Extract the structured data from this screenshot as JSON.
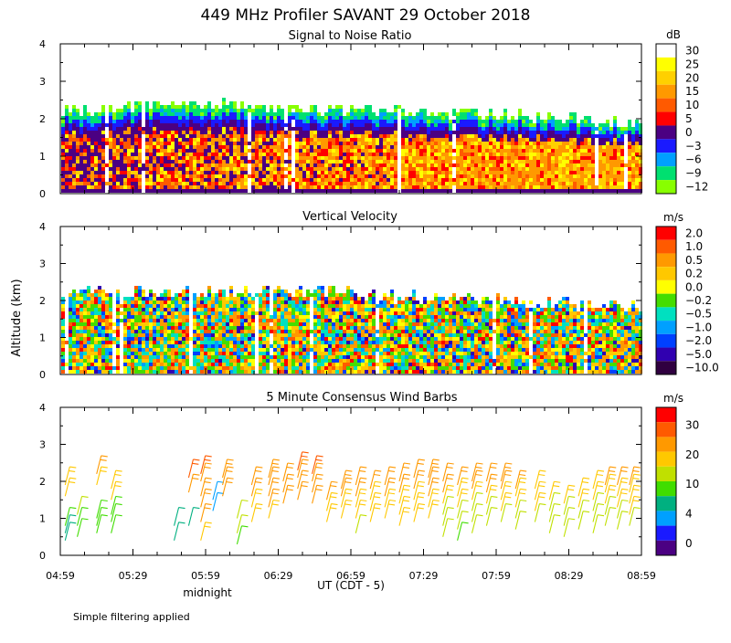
{
  "title": "449 MHz Profiler SAVANT 29 October 2018",
  "y_axis_label": "Altitude (km)",
  "x_axis_label": "UT  (CDT - 5)",
  "midnight_label": "midnight",
  "footer_note": "Simple filtering applied",
  "chart_data": [
    {
      "type": "heatmap",
      "title": "Signal to Noise Ratio",
      "ylabel": "Altitude (km)",
      "xlabel": "UT  (CDT - 5)",
      "x_ticks": [
        "04:59",
        "05:29",
        "05:59",
        "06:29",
        "06:59",
        "07:29",
        "07:59",
        "08:29",
        "08:59"
      ],
      "x_range": [
        "04:59",
        "08:59"
      ],
      "y_ticks": [
        0,
        1,
        2,
        3,
        4
      ],
      "ylim": [
        0,
        4
      ],
      "colorbar": {
        "unit": "dB",
        "labels": [
          "30",
          "25",
          "20",
          "15",
          "10",
          "5",
          "0",
          "−3",
          "−6",
          "−9",
          "−12"
        ],
        "colors": [
          "#ffffff",
          "#ffff00",
          "#ffd000",
          "#ff9900",
          "#ff5a00",
          "#ff0000",
          "#4b0082",
          "#1a1aff",
          "#00a0ff",
          "#00e070",
          "#88ff00"
        ]
      },
      "echo_top_km": [
        2.15,
        2.25,
        2.3,
        2.35,
        2.25,
        2.2,
        2.15,
        2.1,
        2.05,
        2.0,
        1.9,
        1.85
      ]
    },
    {
      "type": "heatmap",
      "title": "Vertical Velocity",
      "ylabel": "Altitude (km)",
      "xlabel": "UT  (CDT - 5)",
      "x_ticks": [
        "04:59",
        "05:29",
        "05:59",
        "06:29",
        "06:59",
        "07:29",
        "07:59",
        "08:29",
        "08:59"
      ],
      "y_ticks": [
        0,
        1,
        2,
        3,
        4
      ],
      "ylim": [
        0,
        4
      ],
      "colorbar": {
        "unit": "m/s",
        "labels": [
          "2.0",
          "1.0",
          "0.5",
          "0.2",
          "0.0",
          "−0.2",
          "−0.5",
          "−1.0",
          "−2.0",
          "−5.0",
          "−10.0"
        ],
        "colors": [
          "#ff0000",
          "#ff5a00",
          "#ff9900",
          "#ffc800",
          "#ffff00",
          "#44dd00",
          "#00e0c0",
          "#00a0ff",
          "#0040ff",
          "#3000b0",
          "#300040"
        ]
      },
      "echo_top_km": [
        2.2,
        2.2,
        2.2,
        2.2,
        2.2,
        2.2,
        2.1,
        2.0,
        2.0,
        1.9,
        1.8,
        1.8
      ]
    },
    {
      "type": "scatter",
      "title": "5 Minute Consensus Wind Barbs",
      "ylabel": "Altitude (km)",
      "xlabel": "UT  (CDT - 5)",
      "x_ticks": [
        "04:59",
        "05:29",
        "05:59",
        "06:29",
        "06:59",
        "07:29",
        "07:59",
        "08:29",
        "08:59"
      ],
      "y_ticks": [
        0,
        1,
        2,
        3,
        4
      ],
      "ylim": [
        0,
        4
      ],
      "colorbar": {
        "unit": "m/s",
        "labels": [
          "30",
          "20",
          "10",
          "4",
          "0"
        ],
        "colors": [
          "#ff0000",
          "#ff5a00",
          "#ff9900",
          "#ffc800",
          "#c0e000",
          "#40dd00",
          "#00b080",
          "#00a0ff",
          "#1a1aff",
          "#4b0082"
        ]
      },
      "barb_columns": [
        {
          "t": "05:01",
          "heights_km": [
            0.4,
            0.6,
            0.8,
            1.6,
            1.9
          ],
          "speed_ms": [
            8,
            8,
            9,
            17,
            17
          ]
        },
        {
          "t": "05:06",
          "heights_km": [
            0.5,
            0.8,
            1.1
          ],
          "speed_ms": [
            10,
            10,
            12
          ]
        },
        {
          "t": "05:14",
          "heights_km": [
            0.6,
            0.8,
            1.0,
            1.9,
            2.2
          ],
          "speed_ms": [
            9,
            10,
            10,
            17,
            18
          ]
        },
        {
          "t": "05:20",
          "heights_km": [
            0.6,
            0.9,
            1.1,
            1.5,
            1.8
          ],
          "speed_ms": [
            10,
            11,
            11,
            16,
            17
          ]
        },
        {
          "t": "05:46",
          "heights_km": [
            0.4,
            0.8
          ],
          "speed_ms": [
            6,
            7
          ]
        },
        {
          "t": "05:52",
          "heights_km": [
            0.8,
            1.7,
            2.1
          ],
          "speed_ms": [
            8,
            20,
            22
          ]
        },
        {
          "t": "05:57",
          "heights_km": [
            0.4,
            0.9,
            1.3,
            1.6,
            2.0,
            2.2
          ],
          "speed_ms": [
            17,
            18,
            19,
            20,
            21,
            22
          ]
        },
        {
          "t": "06:02",
          "heights_km": [
            1.2,
            1.5
          ],
          "speed_ms": [
            5,
            5
          ]
        },
        {
          "t": "06:06",
          "heights_km": [
            1.6,
            1.9,
            2.1
          ],
          "speed_ms": [
            19,
            20,
            21
          ]
        },
        {
          "t": "06:12",
          "heights_km": [
            0.3,
            0.6,
            1.0
          ],
          "speed_ms": [
            11,
            12,
            12
          ]
        },
        {
          "t": "06:18",
          "heights_km": [
            0.9,
            1.3,
            1.6,
            1.9
          ],
          "speed_ms": [
            16,
            17,
            19,
            20
          ]
        },
        {
          "t": "06:25",
          "heights_km": [
            1.0,
            1.3,
            1.6,
            1.9,
            2.1
          ],
          "speed_ms": [
            17,
            18,
            19,
            20,
            21
          ]
        },
        {
          "t": "06:31",
          "heights_km": [
            1.4,
            1.7,
            2.0
          ],
          "speed_ms": [
            18,
            19,
            21
          ]
        },
        {
          "t": "06:37",
          "heights_km": [
            1.5,
            1.8,
            2.1,
            2.3
          ],
          "speed_ms": [
            19,
            20,
            21,
            22
          ]
        },
        {
          "t": "06:43",
          "heights_km": [
            1.4,
            1.7,
            2.0,
            2.2
          ],
          "speed_ms": [
            18,
            19,
            21,
            22
          ]
        },
        {
          "t": "06:49",
          "heights_km": [
            0.9,
            1.2,
            1.5
          ],
          "speed_ms": [
            16,
            17,
            18
          ]
        },
        {
          "t": "06:55",
          "heights_km": [
            1.0,
            1.3,
            1.6,
            1.8
          ],
          "speed_ms": [
            16,
            17,
            18,
            19
          ]
        },
        {
          "t": "07:01",
          "heights_km": [
            0.6,
            1.0,
            1.3,
            1.6,
            1.9
          ],
          "speed_ms": [
            14,
            16,
            17,
            18,
            19
          ]
        },
        {
          "t": "07:07",
          "heights_km": [
            0.9,
            1.2,
            1.5,
            1.8
          ],
          "speed_ms": [
            15,
            16,
            17,
            18
          ]
        },
        {
          "t": "07:13",
          "heights_km": [
            1.0,
            1.3,
            1.6,
            1.9
          ],
          "speed_ms": [
            16,
            17,
            18,
            19
          ]
        },
        {
          "t": "07:19",
          "heights_km": [
            0.8,
            1.1,
            1.4,
            1.7,
            2.0
          ],
          "speed_ms": [
            15,
            16,
            17,
            18,
            19
          ]
        },
        {
          "t": "07:25",
          "heights_km": [
            0.9,
            1.2,
            1.5,
            1.8,
            2.1
          ],
          "speed_ms": [
            15,
            16,
            17,
            18,
            20
          ]
        },
        {
          "t": "07:31",
          "heights_km": [
            1.0,
            1.3,
            1.6,
            1.9,
            2.1
          ],
          "speed_ms": [
            16,
            17,
            18,
            19,
            20
          ]
        },
        {
          "t": "07:37",
          "heights_km": [
            0.5,
            0.8,
            1.1,
            1.4,
            1.7,
            2.0
          ],
          "speed_ms": [
            12,
            13,
            14,
            16,
            18,
            20
          ]
        },
        {
          "t": "07:43",
          "heights_km": [
            0.4,
            0.7,
            1.0,
            1.3,
            1.6,
            1.9
          ],
          "speed_ms": [
            11,
            12,
            13,
            15,
            17,
            19
          ]
        },
        {
          "t": "07:49",
          "heights_km": [
            0.6,
            0.9,
            1.2,
            1.5,
            1.8,
            2.0
          ],
          "speed_ms": [
            12,
            13,
            14,
            16,
            18,
            19
          ]
        },
        {
          "t": "07:55",
          "heights_km": [
            0.8,
            1.1,
            1.4,
            1.7,
            2.0
          ],
          "speed_ms": [
            13,
            14,
            16,
            18,
            20
          ]
        },
        {
          "t": "08:01",
          "heights_km": [
            0.9,
            1.2,
            1.5,
            1.8,
            2.0
          ],
          "speed_ms": [
            14,
            15,
            17,
            18,
            19
          ]
        },
        {
          "t": "08:07",
          "heights_km": [
            0.7,
            1.0,
            1.3,
            1.6,
            1.8
          ],
          "speed_ms": [
            13,
            14,
            15,
            17,
            18
          ]
        },
        {
          "t": "08:15",
          "heights_km": [
            0.9,
            1.2,
            1.5,
            1.8
          ],
          "speed_ms": [
            14,
            15,
            16,
            17
          ]
        },
        {
          "t": "08:21",
          "heights_km": [
            0.6,
            0.9,
            1.2,
            1.5
          ],
          "speed_ms": [
            12,
            13,
            14,
            15
          ]
        },
        {
          "t": "08:27",
          "heights_km": [
            0.5,
            0.8,
            1.1,
            1.4
          ],
          "speed_ms": [
            12,
            13,
            14,
            16
          ]
        },
        {
          "t": "08:33",
          "heights_km": [
            0.7,
            1.0,
            1.3,
            1.6
          ],
          "speed_ms": [
            13,
            14,
            15,
            16
          ]
        },
        {
          "t": "08:39",
          "heights_km": [
            0.6,
            0.9,
            1.2,
            1.5,
            1.8
          ],
          "speed_ms": [
            12,
            13,
            14,
            16,
            17
          ]
        },
        {
          "t": "08:44",
          "heights_km": [
            0.8,
            1.1,
            1.4,
            1.7,
            1.9
          ],
          "speed_ms": [
            13,
            14,
            15,
            17,
            18
          ]
        },
        {
          "t": "08:49",
          "heights_km": [
            0.7,
            1.0,
            1.3,
            1.6,
            1.9
          ],
          "speed_ms": [
            13,
            14,
            16,
            17,
            18
          ]
        },
        {
          "t": "08:54",
          "heights_km": [
            0.8,
            1.1,
            1.4,
            1.7,
            1.9
          ],
          "speed_ms": [
            14,
            15,
            16,
            17,
            18
          ]
        }
      ]
    }
  ]
}
